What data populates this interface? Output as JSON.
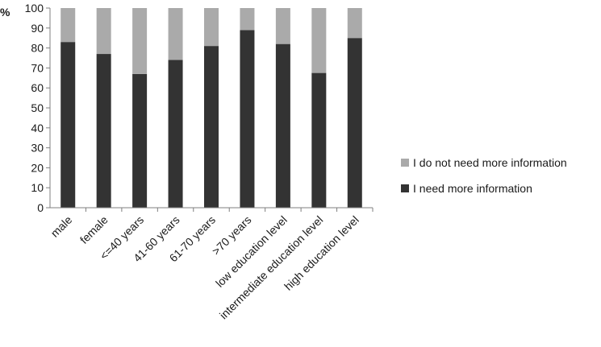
{
  "chart_data": {
    "type": "bar",
    "stacked": true,
    "categories": [
      "male",
      "female",
      "<=40 years",
      "41-60 years",
      "61-70 years",
      ">70 years",
      "low education level",
      "intermediate education level",
      "high education level"
    ],
    "series": [
      {
        "name": "I need more information",
        "values": [
          83,
          77,
          67,
          74,
          81,
          89,
          82,
          67.5,
          85
        ],
        "color": "#333333"
      },
      {
        "name": "I do not need more information",
        "values": [
          17,
          23,
          33,
          26,
          19,
          11,
          18,
          32.5,
          15
        ],
        "color": "#aaaaaa"
      }
    ],
    "ylabel": "%",
    "ylim": [
      0,
      100
    ],
    "yticks": [
      0,
      10,
      20,
      30,
      40,
      50,
      60,
      70,
      80,
      90,
      100
    ],
    "grid": false,
    "legend_position": "right",
    "legend_order": [
      "I do not need more information",
      "I need more information"
    ]
  }
}
